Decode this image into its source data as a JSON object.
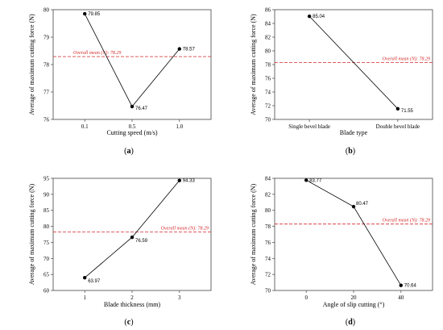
{
  "chart_data": [
    {
      "type": "line",
      "panel_label": "(a)",
      "panel_letter": "a",
      "xlabel": "Cutting speed (m/s)",
      "ylabel": "Average of maximum cutting force (N)",
      "categories": [
        "0.1",
        "0.5",
        "1.0"
      ],
      "values": [
        79.85,
        76.47,
        78.57
      ],
      "data_labels": [
        "79.85",
        "76.47",
        "78.57"
      ],
      "ylim": [
        76,
        80
      ],
      "yticks": [
        76,
        77,
        78,
        79,
        80
      ],
      "mean": 78.29,
      "mean_label": "Overall mean (N): 78.29",
      "mean_label_position": "left"
    },
    {
      "type": "line",
      "panel_label": "(b)",
      "panel_letter": "b",
      "xlabel": "Blade type",
      "ylabel": "Average of maximum cutting force (N)",
      "categories": [
        "Single bevel blade",
        "Double bevel blade"
      ],
      "values": [
        85.04,
        71.55
      ],
      "data_labels": [
        "85.04",
        "71.55"
      ],
      "ylim": [
        70,
        86
      ],
      "yticks": [
        70,
        72,
        74,
        76,
        78,
        80,
        82,
        84,
        86
      ],
      "mean": 78.29,
      "mean_label": "Overall mean (N): 78.29",
      "mean_label_position": "right"
    },
    {
      "type": "line",
      "panel_label": "(c)",
      "panel_letter": "c",
      "xlabel": "Blade thickness (mm)",
      "ylabel": "Average of maximum cutting force (N)",
      "categories": [
        "1",
        "2",
        "3"
      ],
      "values": [
        63.97,
        76.59,
        94.33
      ],
      "data_labels": [
        "63.97",
        "76.59",
        "94.33"
      ],
      "ylim": [
        60,
        95
      ],
      "yticks": [
        60,
        65,
        70,
        75,
        80,
        85,
        90,
        95
      ],
      "mean": 78.29,
      "mean_label": "Overall mean (N): 78.29",
      "mean_label_position": "right"
    },
    {
      "type": "line",
      "panel_label": "(d)",
      "panel_letter": "d",
      "xlabel": "Angle of slip cutting (°)",
      "ylabel": "Average of maximum cutting force (N)",
      "categories": [
        "0",
        "20",
        "40"
      ],
      "values": [
        83.77,
        80.47,
        70.64
      ],
      "data_labels": [
        "83.77",
        "80.47",
        "70.64"
      ],
      "ylim": [
        70,
        84
      ],
      "yticks": [
        70,
        72,
        74,
        76,
        78,
        80,
        82,
        84
      ],
      "mean": 78.29,
      "mean_label": "Overall mean (N): 78.29",
      "mean_label_position": "right"
    }
  ],
  "colors": {
    "line": "#000000",
    "marker": "#000000",
    "mean_line": "#d62728",
    "axis": "#444444"
  }
}
